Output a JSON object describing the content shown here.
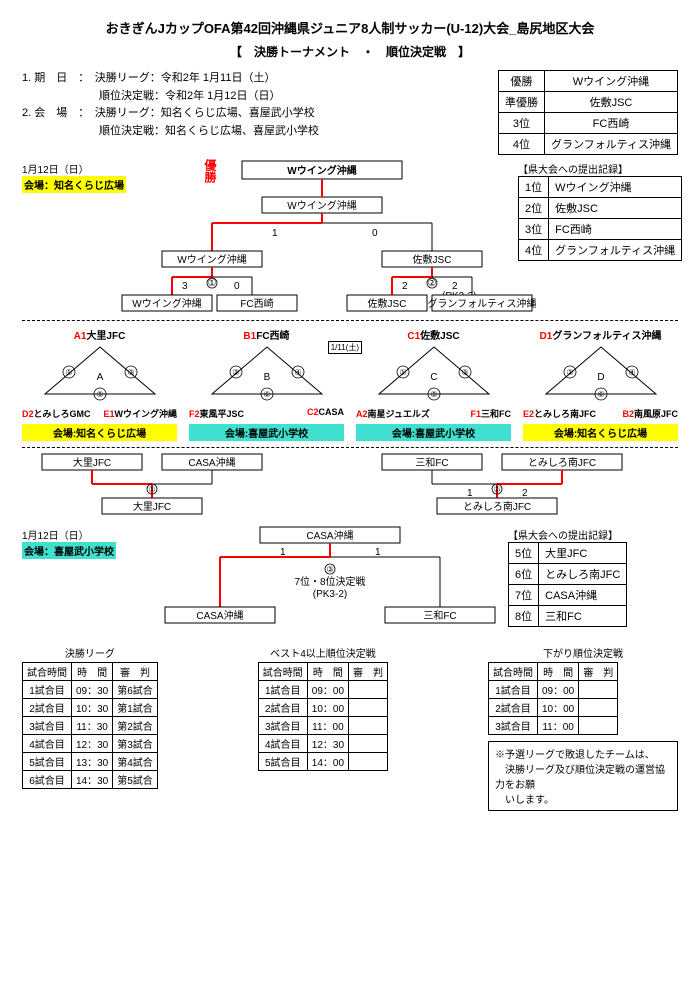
{
  "title": "おきぎんJカップOFA第42回沖縄県ジュニア8人制サッカー(U-12)大会_島尻地区大会",
  "subtitle": "【　決勝トーナメント　・　順位決定戦　】",
  "info": {
    "l1": "1. 期　日　：　決勝リーグ：令和2年 1月11日（土）",
    "l2": "　　　　　　　順位決定戦：令和2年 1月12日（日）",
    "l3": "2. 会　場　：　決勝リーグ：知名くらじ広場、喜屋武小学校",
    "l4": "　　　　　　　順位決定戦：知名くらじ広場、喜屋武小学校"
  },
  "results": {
    "rows": [
      [
        "優勝",
        "Wウイング沖縄"
      ],
      [
        "準優勝",
        "佐敷JSC"
      ],
      [
        "3位",
        "FC西崎"
      ],
      [
        "4位",
        "グランフォルティス沖縄"
      ]
    ]
  },
  "submit1": {
    "title": "【県大会への提出記録】",
    "rows": [
      [
        "1位",
        "Wウイング沖縄"
      ],
      [
        "2位",
        "佐敷JSC"
      ],
      [
        "3位",
        "FC西崎"
      ],
      [
        "4位",
        "グランフォルティス沖縄"
      ]
    ]
  },
  "submit2": {
    "title": "【県大会への提出記録】",
    "rows": [
      [
        "5位",
        "大里JFC"
      ],
      [
        "6位",
        "とみしろ南JFC"
      ],
      [
        "7位",
        "CASA沖縄"
      ],
      [
        "8位",
        "三和FC"
      ]
    ]
  },
  "upper": {
    "date": "1月12日（日）",
    "venue": "会場：知名くらじ広場",
    "champ_label": "優勝",
    "champion": "Wウイング沖縄",
    "final_w": "Wウイング沖縄",
    "score_l": "1",
    "score_r": "0",
    "semi_l": "Wウイング沖縄",
    "semi_r": "佐敷JSC",
    "sl_score": "3",
    "sl_m": "①",
    "sl_score2": "0",
    "sr_score": "2",
    "sr_m": "②",
    "sr_score2": "2",
    "sr_pk": "(PK3-2)",
    "q1": "Wウイング沖縄",
    "q2": "FC西崎",
    "q3": "佐敷JSC",
    "q4": "グランフォルティス沖縄"
  },
  "groups": {
    "date_center": "1/11(土)",
    "A": {
      "title_code": "A1",
      "title_team": "大里JFC",
      "letter": "A",
      "m": [
        "①",
        "③",
        "⑤"
      ],
      "b1_code": "D2",
      "b1": "とみしろGMC",
      "b2_code": "E1",
      "b2": "Wウイング沖縄"
    },
    "B": {
      "title_code": "B1",
      "title_team": "FC西崎",
      "letter": "B",
      "m": [
        "②",
        "④",
        "⑥"
      ],
      "b1_code": "F2",
      "b1": "東風平JSC",
      "b2_code": "C2",
      "b2": "CASA"
    },
    "C": {
      "title_code": "C1",
      "title_team": "佐敷JSC",
      "letter": "C",
      "m": [
        "①",
        "③",
        "⑤"
      ],
      "b1_code": "A2",
      "b1": "南星ジュエルズ",
      "b2_code": "F1",
      "b2": "三和FC"
    },
    "D": {
      "title_code": "D1",
      "title_team": "グランフォルティス沖縄",
      "letter": "D",
      "m": [
        "②",
        "④",
        "⑥"
      ],
      "b1_code": "E2",
      "b1": "とみしろ南JFC",
      "b2_code": "B2",
      "b2": "南風原JFC"
    },
    "venues": [
      "会場:知名くらじ広場",
      "会場:喜屋武小学校",
      "会場:喜屋武小学校",
      "会場:知名くらじ広場"
    ],
    "venue_colors": [
      "#ffff00",
      "#40e0d0",
      "#40e0d0",
      "#ffff00"
    ]
  },
  "lower1": {
    "t1": "大里JFC",
    "t2": "CASA沖縄",
    "t3": "三和FC",
    "t4": "とみしろ南JFC",
    "m1": "①",
    "m2": "②",
    "w1": "大里JFC",
    "w2": "とみしろ南JFC",
    "s1": "1",
    "s2": "2"
  },
  "lower2": {
    "date": "1月12日（日）",
    "venue": "会場：喜屋武小学校",
    "center": "CASA沖縄",
    "sl": "1",
    "sr": "1",
    "m": "③",
    "note": "7位・8位決定戦",
    "pk": "(PK3-2)",
    "tL": "CASA沖縄",
    "tR": "三和FC"
  },
  "sched": {
    "left": {
      "title": "決勝リーグ",
      "hdr": [
        "試合時間",
        "時　間",
        "審　判"
      ],
      "rows": [
        [
          "1試合目",
          "09：30",
          "第6試合"
        ],
        [
          "2試合目",
          "10：30",
          "第1試合"
        ],
        [
          "3試合目",
          "11：30",
          "第2試合"
        ],
        [
          "4試合目",
          "12：30",
          "第3試合"
        ],
        [
          "5試合目",
          "13：30",
          "第4試合"
        ],
        [
          "6試合目",
          "14：30",
          "第5試合"
        ]
      ]
    },
    "mid": {
      "title": "ベスト4以上順位決定戦",
      "hdr": [
        "試合時間",
        "時　間",
        "審　判"
      ],
      "rows": [
        [
          "1試合目",
          "09：00",
          ""
        ],
        [
          "2試合目",
          "10：00",
          ""
        ],
        [
          "3試合目",
          "11：00",
          ""
        ],
        [
          "4試合目",
          "12：30",
          ""
        ],
        [
          "5試合目",
          "14：00",
          ""
        ]
      ]
    },
    "right": {
      "title": "下がり順位決定戦",
      "hdr": [
        "試合時間",
        "時　間",
        "審　判"
      ],
      "rows": [
        [
          "1試合目",
          "09：00",
          ""
        ],
        [
          "2試合目",
          "10：00",
          ""
        ],
        [
          "3試合目",
          "11：00",
          ""
        ]
      ]
    }
  },
  "note": "※予選リーグで敗退したチームは、\n　決勝リーグ及び順位決定戦の運営協力をお願\n　いします。",
  "colors": {
    "red": "#ff0000",
    "yellow": "#ffff00",
    "cyan": "#40e0d0"
  }
}
